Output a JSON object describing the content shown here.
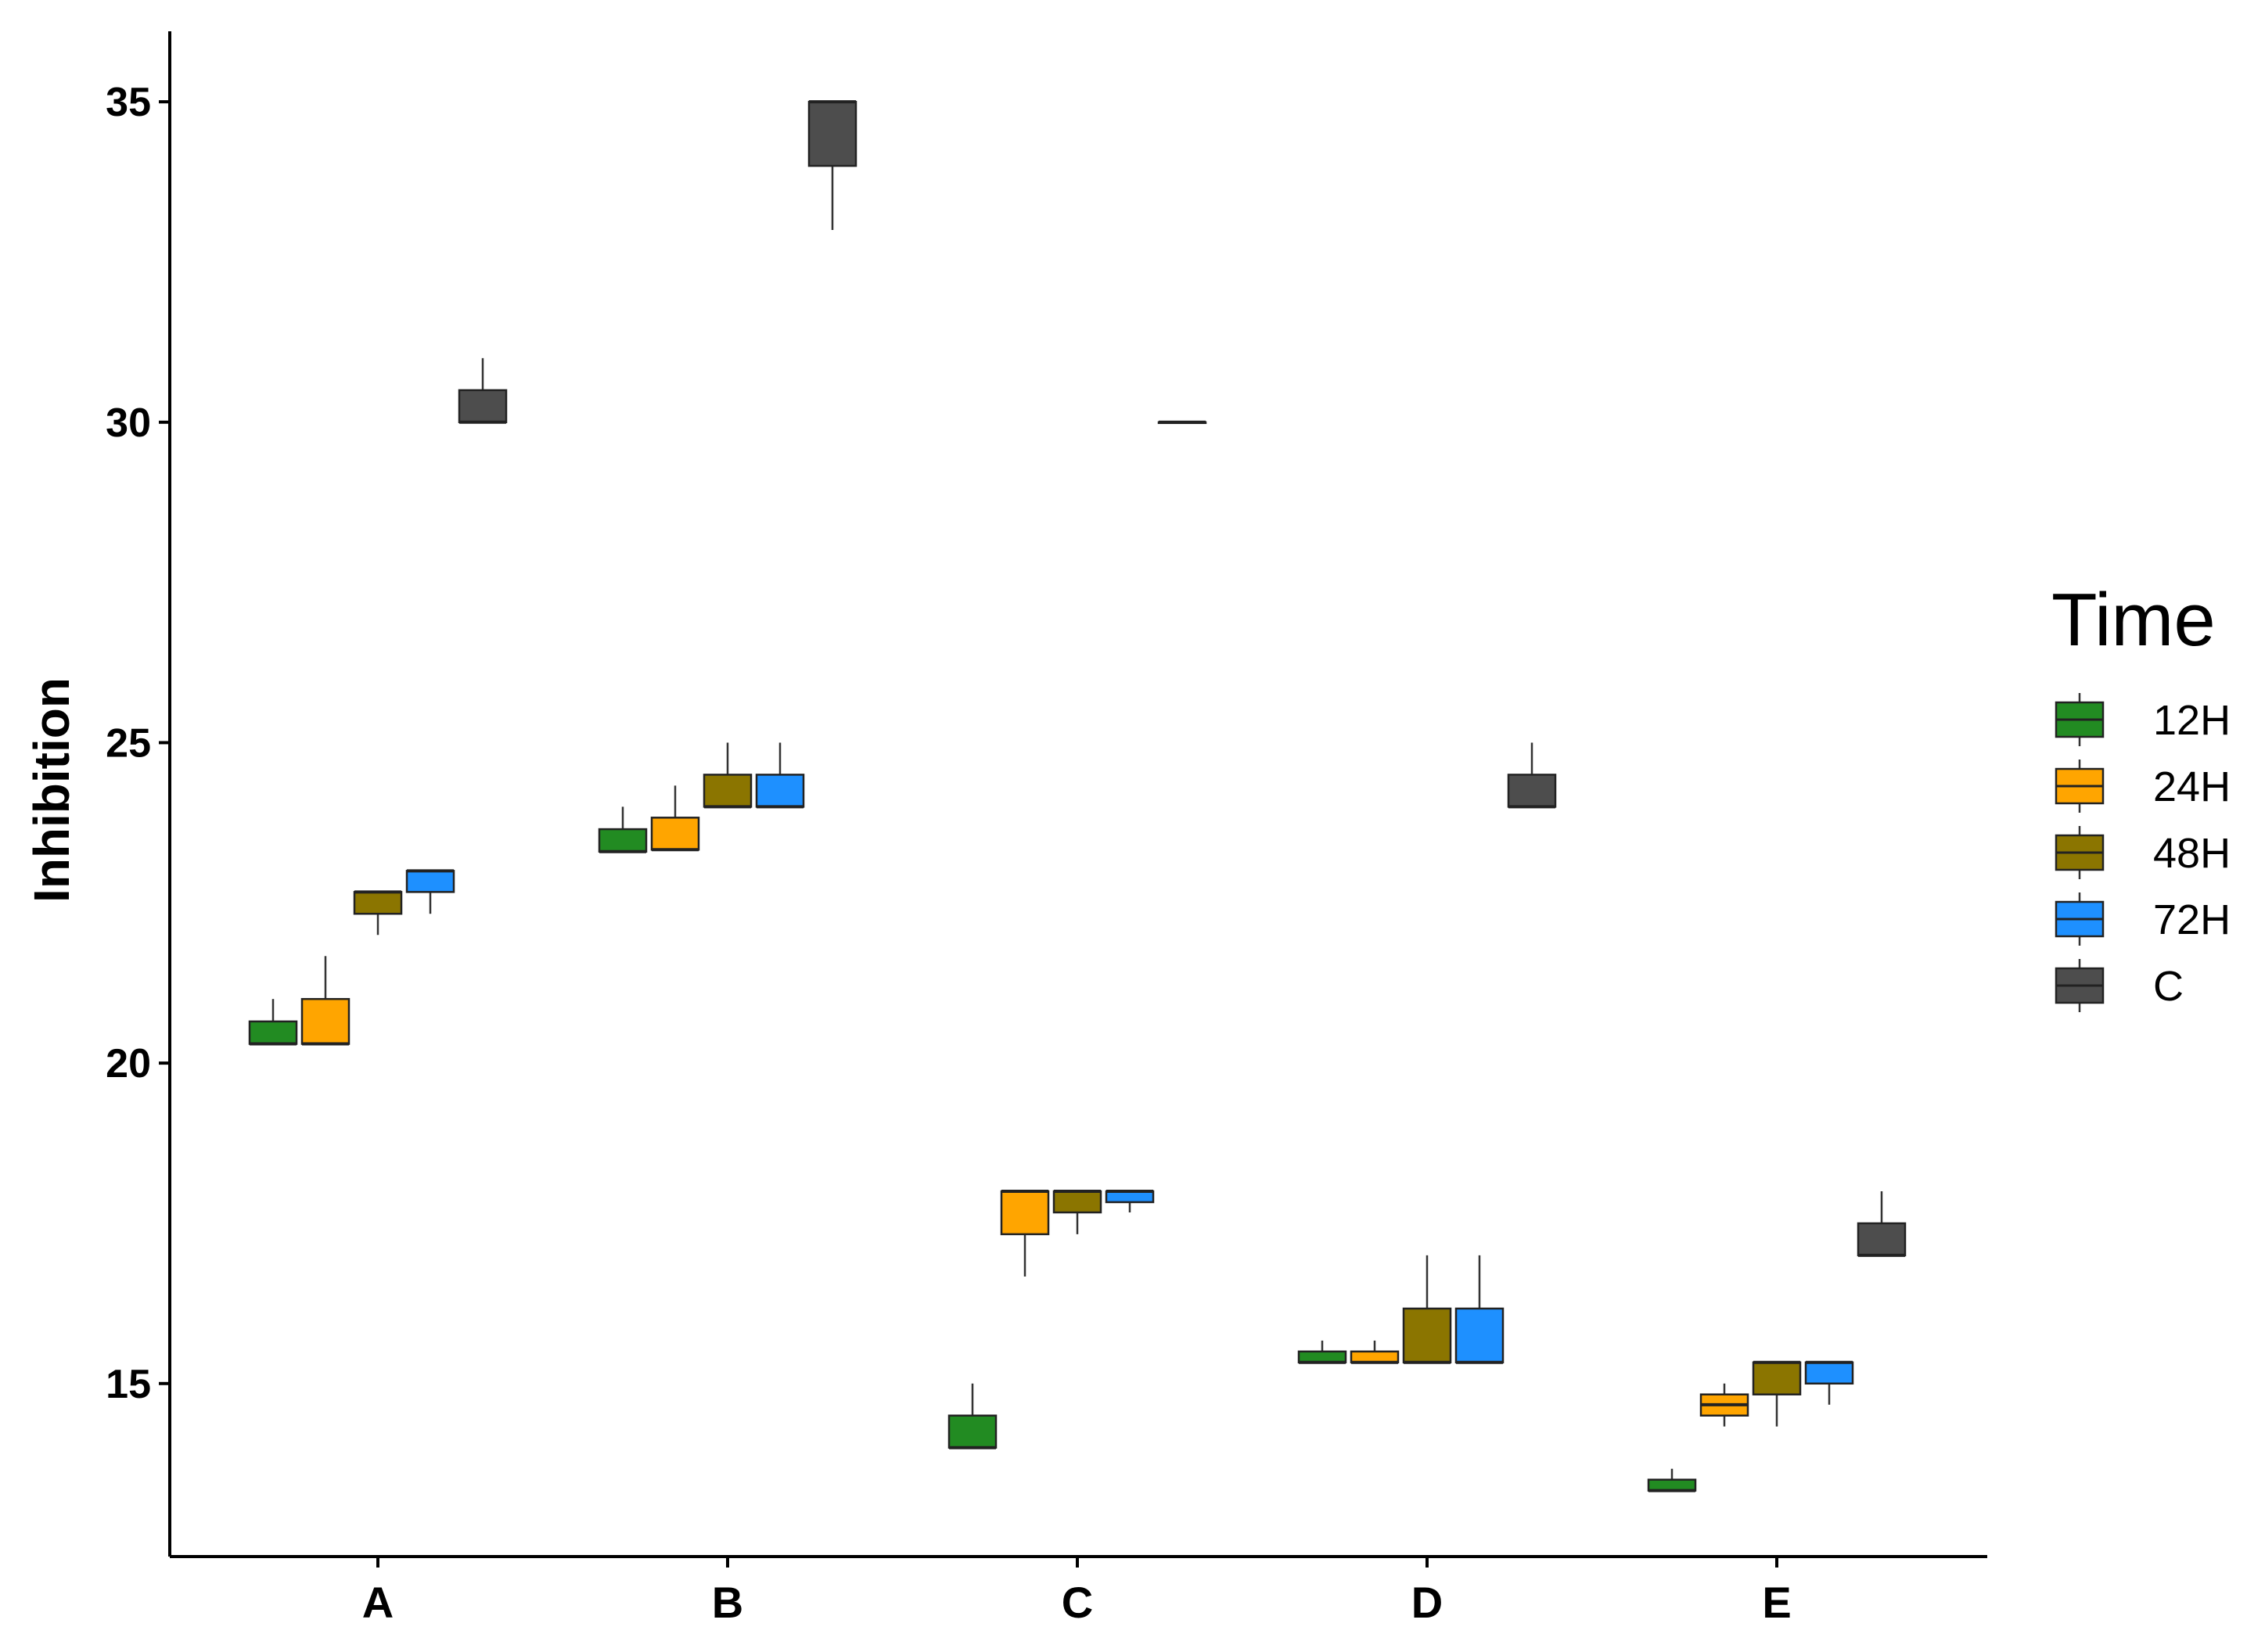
{
  "chart_data": {
    "type": "boxplot",
    "title": "",
    "xlabel": "",
    "ylabel": "Inhibition",
    "ylim": [
      12.3,
      36.1
    ],
    "yticks": [
      15,
      20,
      25,
      30,
      35
    ],
    "ytick_labels": [
      "15",
      "20",
      "25",
      "30",
      "35"
    ],
    "grid": false,
    "categories": [
      "A",
      "B",
      "C",
      "D",
      "E"
    ],
    "legend": {
      "title": "Time",
      "placement": "right"
    },
    "series": [
      {
        "name": "12H",
        "color": "#228B22",
        "boxes": [
          {
            "category": "A",
            "min": 20.3,
            "q1": 20.3,
            "median": 20.3,
            "q3": 20.65,
            "max": 21.0
          },
          {
            "category": "B",
            "min": 23.3,
            "q1": 23.3,
            "median": 23.3,
            "q3": 23.65,
            "max": 24.0
          },
          {
            "category": "C",
            "min": 14.0,
            "q1": 14.0,
            "median": 14.0,
            "q3": 14.5,
            "max": 15.0
          },
          {
            "category": "D",
            "min": 15.33,
            "q1": 15.33,
            "median": 15.33,
            "q3": 15.5,
            "max": 15.67
          },
          {
            "category": "E",
            "min": 13.33,
            "q1": 13.33,
            "median": 13.33,
            "q3": 13.5,
            "max": 13.67
          }
        ]
      },
      {
        "name": "24H",
        "color": "#FFA500",
        "boxes": [
          {
            "category": "A",
            "min": 20.3,
            "q1": 20.3,
            "median": 20.3,
            "q3": 21.0,
            "max": 21.67
          },
          {
            "category": "B",
            "min": 23.33,
            "q1": 23.33,
            "median": 23.33,
            "q3": 23.83,
            "max": 24.33
          },
          {
            "category": "C",
            "min": 16.67,
            "q1": 17.33,
            "median": 18.0,
            "q3": 18.0,
            "max": 18.0
          },
          {
            "category": "D",
            "min": 15.33,
            "q1": 15.33,
            "median": 15.33,
            "q3": 15.5,
            "max": 15.67
          },
          {
            "category": "E",
            "min": 14.33,
            "q1": 14.5,
            "median": 14.67,
            "q3": 14.83,
            "max": 15.0
          }
        ]
      },
      {
        "name": "48H",
        "color": "#8B7500",
        "boxes": [
          {
            "category": "A",
            "min": 22.0,
            "q1": 22.33,
            "median": 22.67,
            "q3": 22.67,
            "max": 22.67
          },
          {
            "category": "B",
            "min": 24.0,
            "q1": 24.0,
            "median": 24.0,
            "q3": 24.5,
            "max": 25.0
          },
          {
            "category": "C",
            "min": 17.33,
            "q1": 17.67,
            "median": 18.0,
            "q3": 18.0,
            "max": 18.0
          },
          {
            "category": "D",
            "min": 15.33,
            "q1": 15.33,
            "median": 15.33,
            "q3": 16.17,
            "max": 17.0
          },
          {
            "category": "E",
            "min": 14.33,
            "q1": 14.83,
            "median": 15.33,
            "q3": 15.33,
            "max": 15.33
          }
        ]
      },
      {
        "name": "72H",
        "color": "#1E90FF",
        "boxes": [
          {
            "category": "A",
            "min": 22.33,
            "q1": 22.67,
            "median": 23.0,
            "q3": 23.0,
            "max": 23.0
          },
          {
            "category": "B",
            "min": 24.0,
            "q1": 24.0,
            "median": 24.0,
            "q3": 24.5,
            "max": 25.0
          },
          {
            "category": "C",
            "min": 17.67,
            "q1": 17.83,
            "median": 18.0,
            "q3": 18.0,
            "max": 18.0
          },
          {
            "category": "D",
            "min": 15.33,
            "q1": 15.33,
            "median": 15.33,
            "q3": 16.17,
            "max": 17.0
          },
          {
            "category": "E",
            "min": 14.67,
            "q1": 15.0,
            "median": 15.33,
            "q3": 15.33,
            "max": 15.33
          }
        ]
      },
      {
        "name": "C",
        "color": "#4D4D4D",
        "boxes": [
          {
            "category": "A",
            "min": 30.0,
            "q1": 30.0,
            "median": 30.0,
            "q3": 30.5,
            "max": 31.0
          },
          {
            "category": "B",
            "min": 33.0,
            "q1": 34.0,
            "median": 35.0,
            "q3": 35.0,
            "max": 35.0
          },
          {
            "category": "C",
            "min": 30.0,
            "q1": 30.0,
            "median": 30.0,
            "q3": 30.0,
            "max": 30.0
          },
          {
            "category": "D",
            "min": 24.0,
            "q1": 24.0,
            "median": 24.0,
            "q3": 24.5,
            "max": 25.0
          },
          {
            "category": "E",
            "min": 17.0,
            "q1": 17.0,
            "median": 17.0,
            "q3": 17.5,
            "max": 18.0
          }
        ]
      }
    ]
  }
}
